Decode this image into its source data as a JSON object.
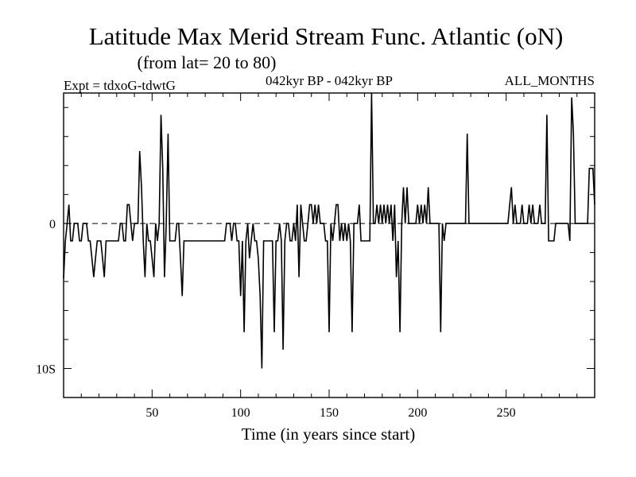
{
  "chart_data": {
    "type": "line",
    "title": "Latitude Max Merid Stream Func. Atlantic (oN)",
    "subtitle": "(from lat= 20 to 80)",
    "left_label": "Expt = tdxoG-tdwtG",
    "center_label": "042kyr BP - 042kyr BP",
    "right_label": "ALL_MONTHS",
    "xlabel": "Time (in years since start)",
    "ylabel": "",
    "xlim": [
      0,
      300
    ],
    "ylim": [
      -12,
      9
    ],
    "x_ticks": [
      50,
      100,
      150,
      200,
      250
    ],
    "x_tick_labels": [
      "50",
      "100",
      "150",
      "200",
      "250"
    ],
    "y_ticks": [
      0,
      -10
    ],
    "y_tick_labels": [
      "0",
      "10S"
    ],
    "zero_line": true,
    "grid": false,
    "series": [
      {
        "x": [
          0,
          1,
          2,
          3,
          4,
          5,
          6,
          7,
          8,
          9,
          10,
          11,
          12,
          13,
          14,
          15,
          16,
          17,
          18,
          19,
          20,
          21,
          22,
          23,
          24,
          25,
          26,
          27,
          28,
          29,
          30,
          31,
          32,
          33,
          34,
          35,
          36,
          37,
          38,
          39,
          40,
          41,
          42,
          43,
          44,
          45,
          46,
          47,
          48,
          49,
          50,
          51,
          52,
          53,
          54,
          55,
          56,
          57,
          58,
          59,
          60,
          61,
          62,
          63,
          64,
          65,
          66,
          67,
          68,
          69,
          70,
          71,
          72,
          73,
          74,
          75,
          76,
          77,
          78,
          79,
          80,
          81,
          82,
          83,
          84,
          85,
          86,
          87,
          88,
          89,
          90,
          91,
          92,
          93,
          94,
          95,
          96,
          97,
          98,
          99,
          100,
          101,
          102,
          103,
          104,
          105,
          106,
          107,
          108,
          109,
          110,
          111,
          112,
          113,
          114,
          115,
          116,
          117,
          118,
          119,
          120,
          121,
          122,
          123,
          124,
          125,
          126,
          127,
          128,
          129,
          130,
          131,
          132,
          133,
          134,
          135,
          136,
          137,
          138,
          139,
          140,
          141,
          142,
          143,
          144,
          145,
          146,
          147,
          148,
          149,
          150,
          151,
          152,
          153,
          154,
          155,
          156,
          157,
          158,
          159,
          160,
          161,
          162,
          163,
          164,
          165,
          166,
          167,
          168,
          169,
          170,
          171,
          172,
          173,
          174,
          175,
          176,
          177,
          178,
          179,
          180,
          181,
          182,
          183,
          184,
          185,
          186,
          187,
          188,
          189,
          190,
          191,
          192,
          193,
          194,
          195,
          196,
          197,
          198,
          199,
          200,
          201,
          202,
          203,
          204,
          205,
          206,
          207,
          208,
          209,
          210,
          211,
          212,
          213,
          214,
          215,
          216,
          217,
          218,
          219,
          220,
          221,
          222,
          223,
          224,
          225,
          226,
          227,
          228,
          229,
          230,
          231,
          232,
          233,
          234,
          235,
          236,
          237,
          238,
          239,
          240,
          241,
          242,
          243,
          244,
          245,
          246,
          247,
          248,
          249,
          250,
          251,
          252,
          253,
          254,
          255,
          256,
          257,
          258,
          259,
          260,
          261,
          262,
          263,
          264,
          265,
          266,
          267,
          268,
          269,
          270,
          271,
          272,
          273,
          274,
          275,
          276,
          277,
          278,
          279,
          280,
          281,
          282,
          283,
          284,
          285,
          286,
          287,
          288,
          289,
          290,
          291,
          292,
          293,
          294,
          295,
          296,
          297,
          298,
          299,
          300
        ],
        "y": [
          -3.8,
          -1.2,
          0,
          1.3,
          -1.2,
          -1.2,
          0,
          0,
          0,
          -1.2,
          -1.2,
          0,
          0,
          0,
          -1.2,
          -1.2,
          -2.4,
          -3.7,
          -2.4,
          -1.2,
          -1.2,
          -1.2,
          -2.4,
          -3.7,
          -1.2,
          -1.2,
          -1.2,
          -1.2,
          -1.2,
          -1.2,
          -1.2,
          -1.2,
          0,
          0,
          -1.2,
          -1.2,
          1.3,
          1.3,
          0,
          -1.2,
          0,
          0,
          0,
          5,
          2.5,
          -1.2,
          -3.7,
          0,
          -1.2,
          -1.2,
          -2.4,
          -3.7,
          0,
          -1.2,
          0,
          7.5,
          3.8,
          -3.7,
          0,
          6.2,
          -1.2,
          -1.2,
          -1.2,
          -1.2,
          0,
          0,
          -2.4,
          -5,
          -1.2,
          -1.2,
          -1.2,
          -1.2,
          -1.2,
          -1.2,
          -1.2,
          -1.2,
          -1.2,
          -1.2,
          -1.2,
          -1.2,
          -1.2,
          -1.2,
          -1.2,
          -1.2,
          -1.2,
          -1.2,
          -1.2,
          -1.2,
          -1.2,
          -1.2,
          -1.2,
          -1.2,
          0,
          0,
          0,
          -1.2,
          0,
          0,
          -1.2,
          -1.2,
          -5,
          -1.2,
          -7.5,
          -1.2,
          0,
          -2.4,
          -1.2,
          0,
          -1.2,
          -1.2,
          -2.4,
          -5,
          -10,
          -1.2,
          -1.2,
          -1.2,
          -1.2,
          -1.2,
          -1.2,
          -7.5,
          -1.2,
          -1.2,
          0,
          -1.2,
          -8.7,
          -1.2,
          0,
          0,
          -1.2,
          -1.2,
          0,
          -1.2,
          1.3,
          -3.7,
          1.3,
          0,
          -1.2,
          -1.2,
          0,
          1.3,
          1.3,
          0,
          1.3,
          0,
          1.3,
          0,
          0,
          0,
          -1.2,
          -1.2,
          -7.5,
          0,
          -1.2,
          0,
          1.3,
          1.3,
          -1.2,
          0,
          -1.2,
          0,
          -1.2,
          0,
          -1.2,
          -7.5,
          0,
          0,
          0,
          1.3,
          -1.2,
          -1.2,
          -1.2,
          -1.2,
          -1.2,
          -1.2,
          9,
          0,
          0,
          1.3,
          0,
          1.3,
          0,
          1.3,
          0,
          1.3,
          0,
          1.3,
          -1.2,
          1.3,
          -3.7,
          -1.2,
          -7.5,
          0,
          2.5,
          0,
          2.5,
          0,
          0,
          0,
          0,
          0,
          1.3,
          0,
          1.3,
          0,
          1.3,
          0,
          2.5,
          0,
          0,
          0,
          0,
          0,
          0,
          -7.5,
          0,
          -1.2,
          0,
          0,
          0,
          0,
          0,
          0,
          0,
          0,
          0,
          0,
          0,
          0,
          6.2,
          0,
          0,
          0,
          0,
          0,
          0,
          0,
          0,
          0,
          0,
          0,
          0,
          0,
          0,
          0,
          0,
          0,
          0,
          0,
          0,
          0,
          0,
          0,
          1.3,
          2.5,
          0,
          1.3,
          0,
          0,
          0,
          1.3,
          0,
          0,
          0,
          1.3,
          0,
          1.3,
          0,
          0,
          0,
          1.3,
          0,
          0,
          0,
          7.5,
          -1.2,
          -1.2,
          -1.2,
          -1.2,
          0,
          0,
          0,
          0,
          0,
          0,
          0,
          0,
          -1.2,
          8.7,
          6.2,
          0,
          0,
          0,
          0,
          0,
          0,
          0,
          0,
          3.8,
          3.8,
          3.8,
          1.3
        ]
      }
    ]
  }
}
